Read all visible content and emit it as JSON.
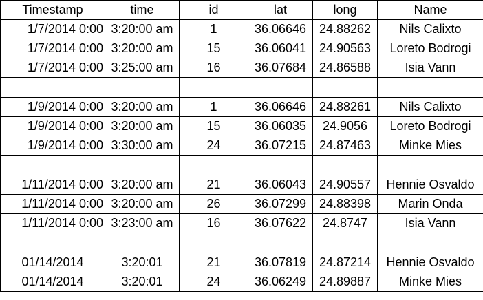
{
  "table": {
    "headers": [
      "Timestamp",
      "time",
      "id",
      "lat",
      "long",
      "Name"
    ],
    "rows": [
      [
        "1/7/2014 0:00",
        "3:20:00 am",
        "1",
        "36.06646",
        "24.88262",
        "Nils Calixto"
      ],
      [
        "1/7/2014 0:00",
        "3:20:00 am",
        "15",
        "36.06041",
        "24.90563",
        "Loreto Bodrogi"
      ],
      [
        "1/7/2014 0:00",
        "3:25:00 am",
        "16",
        "36.07684",
        "24.86588",
        "Isia Vann"
      ],
      [
        "",
        "",
        "",
        "",
        "",
        ""
      ],
      [
        "1/9/2014 0:00",
        "3:20:00 am",
        "1",
        "36.06646",
        "24.88261",
        "Nils Calixto"
      ],
      [
        "1/9/2014 0:00",
        "3:20:00 am",
        "15",
        "36.06035",
        "24.9056",
        "Loreto Bodrogi"
      ],
      [
        "1/9/2014 0:00",
        "3:30:00 am",
        "24",
        "36.07215",
        "24.87463",
        "Minke Mies"
      ],
      [
        "",
        "",
        "",
        "",
        "",
        ""
      ],
      [
        "1/11/2014 0:00",
        "3:20:00 am",
        "21",
        "36.06043",
        "24.90557",
        "Hennie Osvaldo"
      ],
      [
        "1/11/2014 0:00",
        "3:20:00 am",
        "26",
        "36.07299",
        "24.88398",
        "Marin Onda"
      ],
      [
        "1/11/2014 0:00",
        "3:23:00 am",
        "16",
        "36.07622",
        "24.8747",
        "Isia Vann"
      ],
      [
        "",
        "",
        "",
        "",
        "",
        ""
      ],
      [
        "01/14/2014",
        "3:20:01",
        "21",
        "36.07819",
        "24.87214",
        "Hennie Osvaldo"
      ],
      [
        "01/14/2014",
        "3:20:01",
        "24",
        "36.06249",
        "24.89887",
        "Minke Mies"
      ]
    ]
  }
}
